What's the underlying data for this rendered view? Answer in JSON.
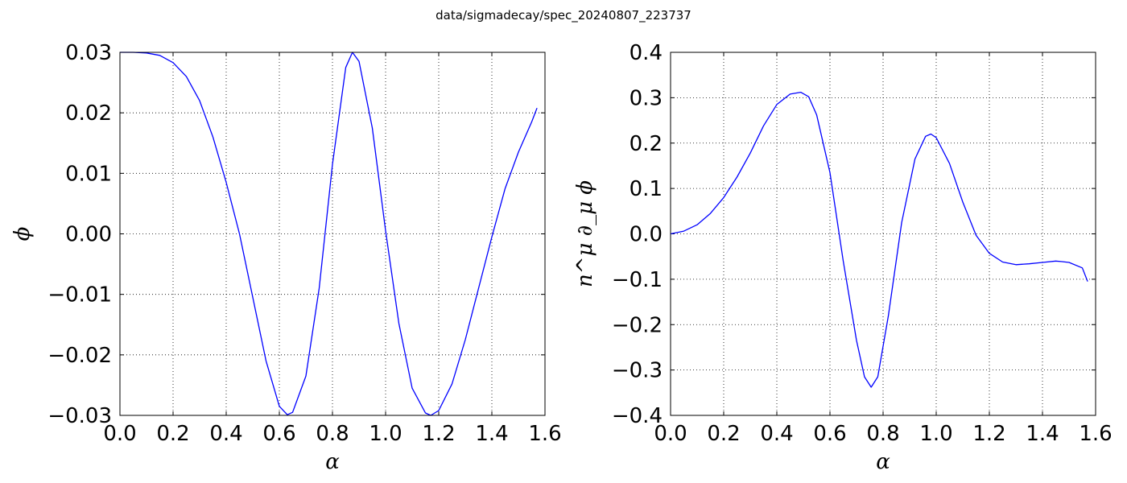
{
  "figure": {
    "title": "data/sigmadecay/spec_20240807_223737"
  },
  "chart_data": [
    {
      "type": "line",
      "title": "",
      "xlabel": "α",
      "ylabel": "ϕ",
      "xlim": [
        0.0,
        1.6
      ],
      "ylim": [
        -0.03,
        0.03
      ],
      "xticks": [
        "0.0",
        "0.2",
        "0.4",
        "0.6",
        "0.8",
        "1.0",
        "1.2",
        "1.4",
        "1.6"
      ],
      "yticks": [
        "−0.03",
        "−0.02",
        "−0.01",
        "0.00",
        "0.01",
        "0.02",
        "0.03"
      ],
      "grid": true,
      "color": "#0000ff",
      "series": [
        {
          "x": [
            0.0,
            0.05,
            0.1,
            0.15,
            0.2,
            0.25,
            0.3,
            0.35,
            0.4,
            0.45,
            0.5,
            0.55,
            0.6,
            0.63,
            0.65,
            0.7,
            0.75,
            0.8,
            0.85,
            0.875,
            0.9,
            0.95,
            1.0,
            1.05,
            1.1,
            1.15,
            1.17,
            1.2,
            1.25,
            1.3,
            1.35,
            1.4,
            1.45,
            1.5,
            1.55,
            1.57
          ],
          "y": [
            0.03,
            0.03,
            0.0299,
            0.0295,
            0.0283,
            0.026,
            0.022,
            0.016,
            0.0085,
            0.0,
            -0.0105,
            -0.021,
            -0.0285,
            -0.0299,
            -0.0295,
            -0.0235,
            -0.009,
            0.0115,
            0.0275,
            0.03,
            0.0285,
            0.0175,
            0.0005,
            -0.0148,
            -0.0255,
            -0.0296,
            -0.03,
            -0.0292,
            -0.0248,
            -0.0175,
            -0.009,
            -0.0005,
            0.0075,
            0.0135,
            0.0185,
            0.0208
          ]
        }
      ]
    },
    {
      "type": "line",
      "title": "",
      "xlabel": "α",
      "ylabel": "n^μ ∂_μ ϕ",
      "xlim": [
        0.0,
        1.6
      ],
      "ylim": [
        -0.4,
        0.4
      ],
      "xticks": [
        "0.0",
        "0.2",
        "0.4",
        "0.6",
        "0.8",
        "1.0",
        "1.2",
        "1.4",
        "1.6"
      ],
      "yticks": [
        "−0.4",
        "−0.3",
        "−0.2",
        "−0.1",
        "0.0",
        "0.1",
        "0.2",
        "0.3",
        "0.4"
      ],
      "grid": true,
      "color": "#0000ff",
      "series": [
        {
          "x": [
            0.0,
            0.05,
            0.1,
            0.15,
            0.2,
            0.25,
            0.3,
            0.35,
            0.4,
            0.45,
            0.49,
            0.52,
            0.55,
            0.6,
            0.65,
            0.7,
            0.73,
            0.755,
            0.78,
            0.82,
            0.87,
            0.92,
            0.96,
            0.98,
            1.0,
            1.05,
            1.1,
            1.15,
            1.2,
            1.25,
            1.3,
            1.35,
            1.4,
            1.45,
            1.47,
            1.5,
            1.55,
            1.57
          ],
          "y": [
            0.0,
            0.006,
            0.02,
            0.045,
            0.08,
            0.125,
            0.178,
            0.238,
            0.285,
            0.308,
            0.312,
            0.302,
            0.262,
            0.135,
            -0.06,
            -0.235,
            -0.315,
            -0.338,
            -0.315,
            -0.18,
            0.025,
            0.165,
            0.215,
            0.22,
            0.212,
            0.155,
            0.07,
            -0.003,
            -0.043,
            -0.062,
            -0.068,
            -0.066,
            -0.063,
            -0.06,
            -0.061,
            -0.063,
            -0.075,
            -0.105
          ]
        }
      ]
    }
  ]
}
